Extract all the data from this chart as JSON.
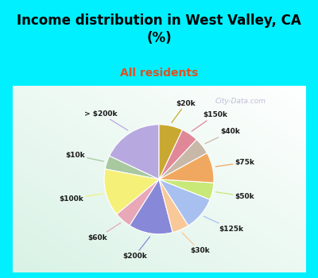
{
  "title": "Income distribution in West Valley, CA\n(%)",
  "subtitle": "All residents",
  "title_color": "#000000",
  "subtitle_color": "#e05020",
  "bg_cyan": "#00f0ff",
  "labels": [
    "> $200k",
    "$10k",
    "$100k",
    "$60k",
    "$200k",
    "$30k",
    "$125k",
    "$50k",
    "$75k",
    "$40k",
    "$150k",
    "$20k"
  ],
  "values": [
    18,
    4,
    14,
    5,
    13,
    5,
    10,
    5,
    9,
    5,
    5,
    7
  ],
  "colors": [
    "#b8a8e0",
    "#a8c8a0",
    "#f5f078",
    "#e8a8b8",
    "#8888d8",
    "#f8c898",
    "#a8c0f0",
    "#c8e878",
    "#f0a860",
    "#c8b8a8",
    "#e08898",
    "#c8a830"
  ],
  "startangle": 90,
  "watermark": "City-Data.com"
}
